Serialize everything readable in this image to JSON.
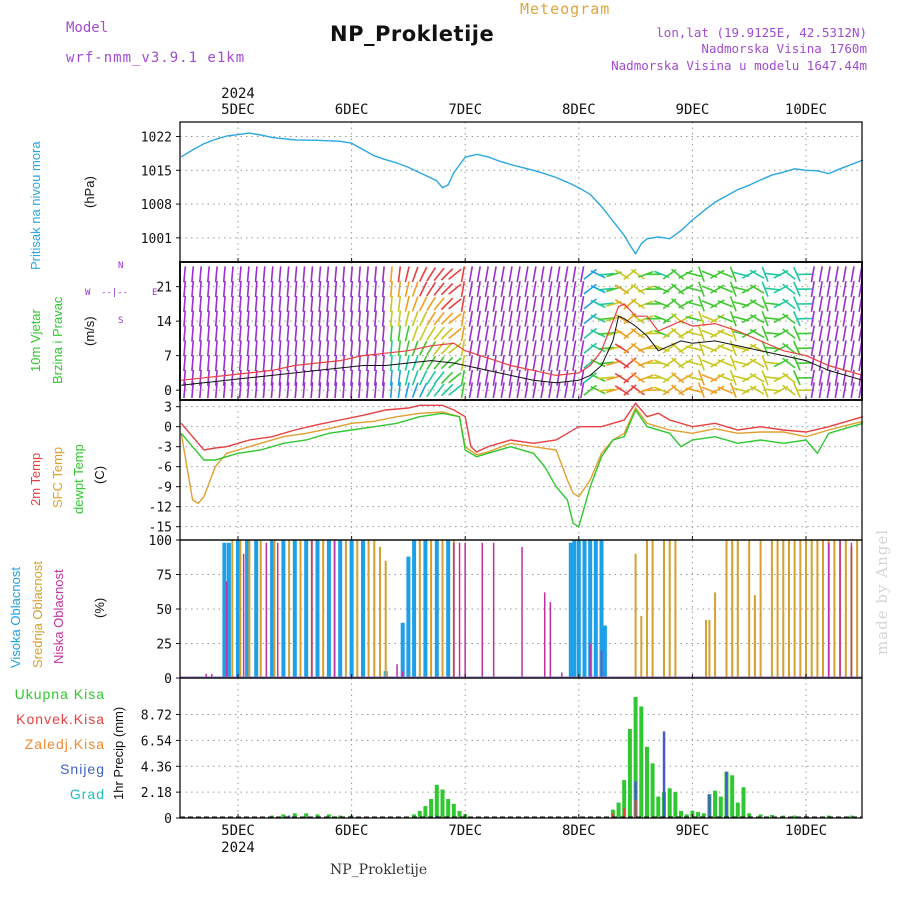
{
  "header": {
    "title": "NP_Prokletije",
    "meteogram": "Meteogram",
    "model_label": "Model",
    "model_name": "wrf-nmm_v3.9.1  e1km",
    "location": "lon,lat (19.9125E, 42.5312N)",
    "elevation": "Nadmorska Visina 1760m",
    "model_elevation": "Nadmorska Visina u modelu 1647.44m"
  },
  "footer": "NP_Prokletije",
  "credit": "made by Angel",
  "colors": {
    "pressure": "#2aa7e0",
    "temp2m": "#e84040",
    "sfc": "#e0a030",
    "dewpt": "#30c830",
    "purple": "#9b2fd0",
    "high_cloud": "#1ea0e6",
    "mid_cloud": "#d4a030",
    "low_cloud": "#c030a0",
    "total_precip": "#30c830",
    "snow": "#4060c8"
  },
  "panel_labels": {
    "pressure": [
      "Pritisak na nivou mora",
      "(hPa)"
    ],
    "wind": [
      "10m Vjetar",
      "Brzina i Pravac",
      "(m/s)"
    ],
    "wind_rose": [
      "N",
      "W",
      "E",
      "S",
      "--|--"
    ],
    "temp": [
      "2m Temp",
      "SFC Temp",
      "dewpt Temp",
      "(C)"
    ],
    "cloud": [
      "Visoka Oblacnost",
      "Srednja Oblacnost",
      "Niska Oblacnost",
      "(%)"
    ],
    "precip": [
      "Ukupna Kisa",
      "Konvek.Kisa",
      "Zaledj.Kisa",
      "Snijeg",
      "Grad",
      "1hr Precip (mm)"
    ]
  },
  "chart_data": [
    {
      "type": "line",
      "name": "pressure",
      "x_ticks_top": [
        "5DEC",
        "6DEC",
        "7DEC",
        "8DEC",
        "9DEC",
        "10DEC"
      ],
      "year": "2024",
      "ylim": [
        996,
        1025
      ],
      "yticks": [
        "1022",
        "1015",
        "1008",
        "1001"
      ],
      "x_days": [
        4.5,
        4.6,
        4.7,
        4.8,
        4.9,
        5.0,
        5.1,
        5.2,
        5.3,
        5.5,
        5.7,
        5.9,
        6.0,
        6.1,
        6.2,
        6.3,
        6.4,
        6.5,
        6.6,
        6.7,
        6.75,
        6.8,
        6.85,
        6.9,
        7.0,
        7.1,
        7.2,
        7.3,
        7.4,
        7.5,
        7.6,
        7.7,
        7.8,
        7.9,
        8.0,
        8.1,
        8.2,
        8.3,
        8.4,
        8.45,
        8.5,
        8.55,
        8.6,
        8.7,
        8.8,
        8.9,
        9.0,
        9.1,
        9.2,
        9.3,
        9.4,
        9.5,
        9.6,
        9.7,
        9.8,
        9.9,
        10.0,
        10.1,
        10.2,
        10.3,
        10.5
      ],
      "values": [
        1017.8,
        1019.2,
        1020.5,
        1021.4,
        1022.1,
        1022.4,
        1022.7,
        1022.3,
        1021.8,
        1021.3,
        1021.2,
        1021.0,
        1020.6,
        1019.3,
        1018.0,
        1017.2,
        1016.5,
        1015.6,
        1014.5,
        1013.4,
        1012.8,
        1011.4,
        1012.0,
        1014.5,
        1017.7,
        1018.3,
        1017.8,
        1016.9,
        1016.2,
        1015.6,
        1015.0,
        1014.3,
        1013.5,
        1012.5,
        1011.4,
        1010.0,
        1007.5,
        1004.5,
        1001.5,
        999.5,
        997.7,
        999.8,
        1000.8,
        1001.2,
        1000.8,
        1002.5,
        1004.7,
        1006.6,
        1008.4,
        1009.7,
        1011.0,
        1011.9,
        1013.0,
        1014.0,
        1014.6,
        1015.3,
        1015.0,
        1014.9,
        1014.3,
        1015.3,
        1017.1
      ]
    },
    {
      "type": "line",
      "name": "wind",
      "ylim": [
        -2,
        26
      ],
      "yticks": [
        "21",
        "14",
        "7",
        "0"
      ],
      "series": [
        {
          "name": "wind speed",
          "x_days": [
            4.5,
            4.7,
            4.9,
            5.1,
            5.3,
            5.5,
            5.7,
            5.9,
            6.1,
            6.3,
            6.5,
            6.7,
            6.9,
            7.0,
            7.2,
            7.4,
            7.6,
            7.8,
            8.0,
            8.1,
            8.2,
            8.3,
            8.35,
            8.4,
            8.5,
            8.6,
            8.7,
            8.8,
            8.9,
            9.0,
            9.2,
            9.4,
            9.6,
            9.8,
            10.0,
            10.2,
            10.5
          ],
          "values": [
            1.0,
            1.5,
            2.0,
            2.5,
            3.0,
            3.5,
            4.0,
            4.5,
            5.0,
            5.0,
            5.5,
            6.0,
            5.5,
            5.0,
            4.0,
            3.0,
            2.0,
            1.5,
            2.0,
            3.0,
            5.0,
            10.0,
            15.0,
            14.5,
            13.0,
            11.0,
            8.0,
            9.0,
            10.0,
            9.5,
            10.0,
            9.0,
            8.0,
            7.0,
            6.0,
            4.0,
            2.0
          ]
        },
        {
          "name": "wind gust",
          "x_days": [
            4.5,
            4.7,
            4.9,
            5.1,
            5.3,
            5.5,
            5.7,
            5.9,
            6.1,
            6.3,
            6.5,
            6.7,
            6.9,
            7.0,
            7.2,
            7.4,
            7.6,
            7.8,
            8.0,
            8.1,
            8.2,
            8.3,
            8.35,
            8.4,
            8.5,
            8.6,
            8.7,
            8.8,
            8.9,
            9.0,
            9.2,
            9.4,
            9.6,
            9.8,
            10.0,
            10.2,
            10.5
          ],
          "values": [
            2.0,
            2.5,
            3.0,
            3.5,
            4.0,
            5.0,
            5.5,
            6.0,
            7.0,
            7.5,
            8.0,
            9.0,
            9.5,
            8.0,
            6.5,
            5.0,
            4.0,
            3.0,
            3.5,
            5.0,
            8.0,
            14.0,
            17.0,
            17.5,
            15.0,
            15.0,
            12.0,
            13.0,
            14.0,
            13.0,
            13.5,
            12.0,
            10.0,
            8.0,
            7.0,
            5.0,
            3.0
          ]
        }
      ]
    },
    {
      "type": "line",
      "name": "temperature",
      "ylim": [
        -17,
        4
      ],
      "yticks": [
        "3",
        "0",
        "-3",
        "-6",
        "-9",
        "-12",
        "-15"
      ],
      "series": [
        {
          "name": "2m Temp",
          "x_days": [
            4.5,
            4.6,
            4.7,
            4.8,
            4.9,
            5.0,
            5.1,
            5.3,
            5.5,
            5.7,
            5.9,
            6.1,
            6.3,
            6.5,
            6.6,
            6.8,
            6.9,
            7.0,
            7.05,
            7.1,
            7.2,
            7.4,
            7.6,
            7.8,
            7.9,
            8.0,
            8.2,
            8.3,
            8.4,
            8.5,
            8.6,
            8.7,
            8.8,
            9.0,
            9.2,
            9.4,
            9.6,
            9.8,
            10.0,
            10.2,
            10.5
          ],
          "values": [
            0.5,
            -1.5,
            -3.5,
            -3.2,
            -3.0,
            -2.5,
            -2.0,
            -1.5,
            -0.5,
            0.3,
            1.0,
            1.7,
            2.5,
            2.8,
            3.2,
            3.2,
            2.5,
            1.5,
            -3.0,
            -3.8,
            -3.0,
            -2.0,
            -2.5,
            -2.0,
            -1.0,
            0.0,
            0.0,
            0.5,
            1.0,
            3.5,
            1.5,
            2.0,
            1.0,
            0.0,
            0.5,
            -0.5,
            0.0,
            -0.5,
            -0.8,
            0.0,
            1.5
          ]
        },
        {
          "name": "SFC Temp",
          "x_days": [
            4.5,
            4.55,
            4.6,
            4.65,
            4.7,
            4.8,
            4.9,
            5.0,
            5.2,
            5.4,
            5.6,
            5.8,
            6.0,
            6.2,
            6.4,
            6.6,
            6.8,
            6.95,
            7.0,
            7.1,
            7.2,
            7.4,
            7.6,
            7.8,
            7.9,
            7.95,
            8.0,
            8.1,
            8.2,
            8.3,
            8.4,
            8.5,
            8.6,
            8.8,
            9.0,
            9.2,
            9.4,
            9.6,
            9.8,
            10.0,
            10.2,
            10.5
          ],
          "values": [
            -1.0,
            -6.0,
            -11.0,
            -11.5,
            -10.5,
            -6.0,
            -4.0,
            -3.5,
            -2.5,
            -1.5,
            -1.0,
            -0.3,
            0.5,
            0.8,
            1.5,
            2.0,
            2.2,
            1.5,
            -3.0,
            -4.2,
            -3.8,
            -2.5,
            -3.0,
            -3.5,
            -8.0,
            -10.0,
            -10.5,
            -8.0,
            -4.0,
            -2.0,
            -1.0,
            2.8,
            0.5,
            -0.5,
            -1.0,
            -0.3,
            -1.0,
            -0.8,
            -0.8,
            -1.5,
            -0.5,
            0.8
          ]
        },
        {
          "name": "dewpt Temp",
          "x_days": [
            4.5,
            4.6,
            4.7,
            4.8,
            4.9,
            5.0,
            5.2,
            5.4,
            5.6,
            5.8,
            6.0,
            6.2,
            6.4,
            6.6,
            6.8,
            6.95,
            7.0,
            7.1,
            7.2,
            7.4,
            7.6,
            7.7,
            7.8,
            7.9,
            7.95,
            8.0,
            8.1,
            8.2,
            8.3,
            8.4,
            8.5,
            8.6,
            8.8,
            8.9,
            9.0,
            9.2,
            9.4,
            9.6,
            9.8,
            10.0,
            10.1,
            10.2,
            10.5
          ],
          "values": [
            -1.0,
            -3.0,
            -5.0,
            -5.0,
            -4.5,
            -4.0,
            -3.5,
            -2.5,
            -2.0,
            -1.0,
            -0.5,
            0.0,
            0.5,
            1.5,
            2.0,
            1.5,
            -3.5,
            -4.5,
            -4.0,
            -3.0,
            -4.0,
            -6.0,
            -9.0,
            -11.0,
            -14.5,
            -15.0,
            -9.0,
            -4.5,
            -2.0,
            -1.5,
            2.5,
            0.0,
            -1.0,
            -3.0,
            -2.0,
            -1.5,
            -2.5,
            -2.0,
            -2.5,
            -2.0,
            -4.0,
            -1.0,
            0.5
          ]
        }
      ]
    },
    {
      "type": "bar",
      "name": "cloud cover",
      "ylim": [
        0,
        100
      ],
      "yticks": [
        "100",
        "75",
        "50",
        "25",
        "0"
      ],
      "series": [
        {
          "name": "Visoka Oblacnost",
          "x_days": [
            4.88,
            4.92,
            5.0,
            5.08,
            5.16,
            5.3,
            5.4,
            5.5,
            5.6,
            5.7,
            5.8,
            5.9,
            6.0,
            6.1,
            6.3,
            6.45,
            6.5,
            6.55,
            6.65,
            6.75,
            6.85,
            7.93,
            7.96,
            8.0,
            8.05,
            8.1,
            8.15,
            8.2,
            8.23
          ],
          "values": [
            98,
            98,
            100,
            100,
            100,
            100,
            100,
            100,
            100,
            100,
            100,
            100,
            100,
            100,
            5,
            40,
            88,
            100,
            100,
            100,
            100,
            98,
            100,
            100,
            100,
            100,
            100,
            100,
            38
          ]
        },
        {
          "name": "Srednja Oblacnost",
          "x_days": [
            4.95,
            5.02,
            5.1,
            5.2,
            5.32,
            5.45,
            5.55,
            5.65,
            5.75,
            5.85,
            5.95,
            6.05,
            6.15,
            6.2,
            6.25,
            6.3,
            6.6,
            6.7,
            6.8,
            6.9,
            8.5,
            8.55,
            8.6,
            8.65,
            8.75,
            8.8,
            8.85,
            9.12,
            9.15,
            9.2,
            9.3,
            9.35,
            9.4,
            9.5,
            9.55,
            9.6,
            9.7,
            9.75,
            9.8,
            9.85,
            9.9,
            9.95,
            10.0,
            10.05,
            10.1,
            10.15,
            10.2,
            10.25,
            10.3,
            10.35,
            10.4,
            10.45
          ],
          "values": [
            100,
            100,
            100,
            100,
            100,
            100,
            100,
            100,
            100,
            100,
            100,
            100,
            100,
            100,
            95,
            85,
            100,
            100,
            100,
            100,
            90,
            45,
            100,
            100,
            100,
            100,
            100,
            42,
            42,
            62,
            100,
            100,
            100,
            100,
            60,
            100,
            100,
            100,
            100,
            100,
            100,
            100,
            100,
            100,
            100,
            100,
            100,
            100,
            100,
            100,
            95,
            100
          ]
        },
        {
          "name": "Niska Oblacnost",
          "x_days": [
            4.72,
            4.77,
            4.9,
            5.05,
            5.25,
            5.35,
            5.65,
            5.85,
            6.4,
            6.45,
            6.9,
            6.95,
            7.0,
            7.15,
            7.25,
            7.5,
            7.7,
            7.75,
            7.85,
            8.1,
            8.2,
            10.2,
            10.3,
            10.4
          ],
          "values": [
            3,
            3,
            70,
            90,
            98,
            98,
            100,
            100,
            10,
            5,
            98,
            98,
            98,
            98,
            98,
            95,
            62,
            55,
            4,
            25,
            20,
            98,
            100,
            98
          ]
        }
      ]
    },
    {
      "type": "bar",
      "name": "precipitation",
      "ylim": [
        0,
        11.8
      ],
      "yticks": [
        "8.72",
        "6.54",
        "4.36",
        "2.18",
        "0"
      ],
      "x_ticks_bottom": [
        "5DEC",
        "6DEC",
        "7DEC",
        "8DEC",
        "9DEC",
        "10DEC"
      ],
      "year": "2024",
      "series": [
        {
          "name": "Ukupna Kisa",
          "x_days": [
            5.3,
            5.4,
            5.5,
            5.6,
            5.7,
            5.8,
            5.9,
            6.0,
            6.55,
            6.6,
            6.65,
            6.7,
            6.75,
            6.8,
            6.85,
            6.9,
            6.95,
            7.0,
            8.3,
            8.35,
            8.4,
            8.45,
            8.5,
            8.55,
            8.6,
            8.65,
            8.7,
            8.75,
            8.8,
            8.85,
            8.9,
            8.95,
            9.0,
            9.05,
            9.1,
            9.15,
            9.2,
            9.25,
            9.3,
            9.35,
            9.4,
            9.45,
            9.5,
            9.6,
            9.7,
            9.8,
            9.9,
            10.0,
            10.2,
            10.4
          ],
          "values": [
            0.2,
            0.3,
            0.4,
            0.4,
            0.3,
            0.3,
            0.2,
            0.2,
            0.3,
            0.6,
            1.0,
            1.6,
            2.8,
            2.4,
            1.6,
            1.2,
            0.6,
            0.3,
            0.7,
            1.3,
            3.2,
            7.5,
            10.2,
            9.4,
            6.0,
            4.6,
            1.8,
            2.2,
            2.5,
            2.2,
            0.6,
            0.3,
            0.6,
            0.5,
            0.4,
            2.0,
            2.3,
            1.8,
            3.9,
            3.6,
            1.3,
            2.6,
            0.4,
            0.3,
            0.25,
            0.2,
            0.2,
            0.15,
            0.2,
            0.2
          ]
        },
        {
          "name": "Snijeg",
          "x_days": [
            5.3,
            5.45,
            5.6,
            6.75,
            8.5,
            8.75,
            9.15,
            9.3
          ],
          "values": [
            0.1,
            0.2,
            0.1,
            0.2,
            3.1,
            7.3,
            2.0,
            3.9
          ]
        },
        {
          "name": "Konvek.Kisa",
          "x_days": [
            8.3,
            8.4,
            8.5
          ],
          "values": [
            0.4,
            0.8,
            1.5
          ]
        }
      ]
    }
  ]
}
